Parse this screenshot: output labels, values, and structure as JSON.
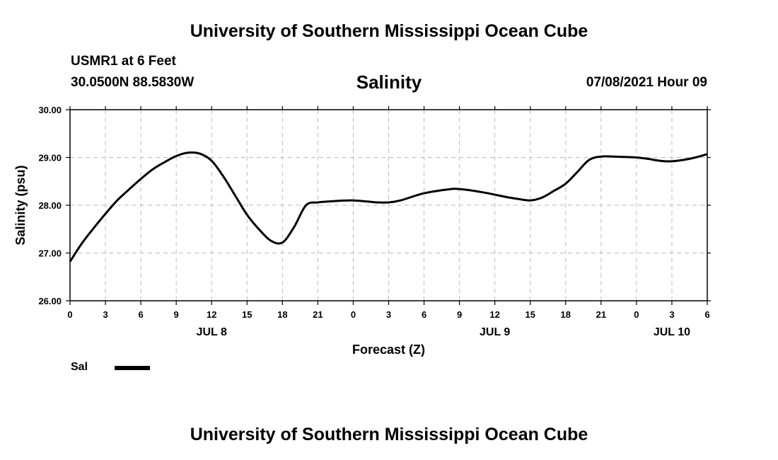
{
  "header": {
    "title": "University of Southern Mississippi Ocean Cube",
    "station": "USMR1 at 6 Feet",
    "coords": "30.0500N  88.5830W",
    "run_time": "07/08/2021 Hour 09",
    "footer_title": "University of Southern Mississippi Ocean Cube"
  },
  "legend": {
    "label": "Sal",
    "color": "#000000"
  },
  "chart_data": {
    "type": "line",
    "title": "Salinity",
    "xlabel": "Forecast (Z)",
    "ylabel": "Salinity (psu)",
    "xlim": [
      0,
      54
    ],
    "ylim": [
      26.0,
      30.0
    ],
    "grid": true,
    "x_tick_values": [
      0,
      3,
      6,
      9,
      12,
      15,
      18,
      21,
      24,
      27,
      30,
      33,
      36,
      39,
      42,
      45,
      48,
      51,
      54
    ],
    "x_tick_labels": [
      "0",
      "3",
      "6",
      "9",
      "12",
      "15",
      "18",
      "21",
      "0",
      "3",
      "6",
      "9",
      "12",
      "15",
      "18",
      "21",
      "0",
      "3",
      "6"
    ],
    "y_ticks": [
      26.0,
      27.0,
      28.0,
      29.0,
      30.0
    ],
    "y_tick_labels": [
      "26.00",
      "27.00",
      "28.00",
      "29.00",
      "30.00"
    ],
    "date_labels": [
      {
        "label": "JUL 8",
        "x": 12
      },
      {
        "label": "JUL 9",
        "x": 36
      },
      {
        "label": "JUL 10",
        "x": 51
      }
    ],
    "series": [
      {
        "name": "Sal",
        "x": [
          0,
          1,
          2,
          3,
          4,
          5,
          6,
          7,
          8,
          9,
          10,
          11,
          12,
          13,
          14,
          15,
          16,
          17,
          18,
          19,
          20,
          21,
          22,
          24,
          26,
          27,
          28,
          30,
          32,
          33,
          35,
          37,
          38,
          39,
          40,
          41,
          42,
          43,
          44,
          45,
          46,
          47,
          48,
          49,
          50,
          51,
          52,
          53,
          54
        ],
        "values": [
          26.82,
          27.2,
          27.52,
          27.82,
          28.1,
          28.33,
          28.55,
          28.75,
          28.9,
          29.03,
          29.1,
          29.08,
          28.93,
          28.6,
          28.2,
          27.8,
          27.5,
          27.26,
          27.22,
          27.55,
          28.0,
          28.06,
          28.08,
          28.1,
          28.06,
          28.06,
          28.1,
          28.25,
          28.33,
          28.34,
          28.27,
          28.17,
          28.13,
          28.1,
          28.16,
          28.3,
          28.45,
          28.7,
          28.95,
          29.02,
          29.02,
          29.01,
          29.0,
          28.97,
          28.93,
          28.92,
          28.95,
          29.0,
          29.07
        ]
      }
    ]
  }
}
